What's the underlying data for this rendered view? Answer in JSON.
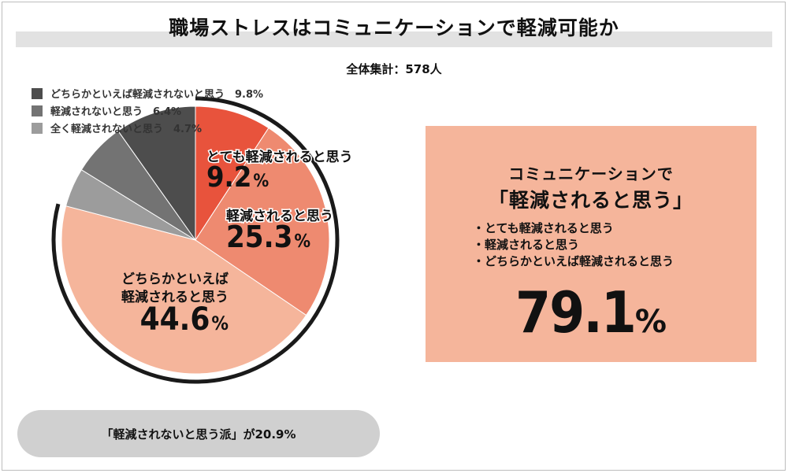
{
  "title": "職場ストレスはコミュニケーションで軽減可能か",
  "subtitle": "全体集計：578人",
  "chart_data": {
    "type": "pie",
    "start_angle_deg": 0,
    "direction": "clockwise",
    "slices": [
      {
        "id": "very",
        "lines": [
          "とても軽減されると思う"
        ],
        "value": 9.2,
        "pct_label": "9.2",
        "color": "#e8533c",
        "inside_label": true
      },
      {
        "id": "yes",
        "lines": [
          "軽減されると思う"
        ],
        "value": 25.3,
        "pct_label": "25.3",
        "color": "#ee8a70",
        "inside_label": true
      },
      {
        "id": "rather",
        "lines": [
          "どちらかといえば",
          "軽減されると思う"
        ],
        "value": 44.6,
        "pct_label": "44.6",
        "color": "#f5b59b",
        "inside_label": true
      },
      {
        "id": "not_at_all",
        "label": "全く軽減されないと思う",
        "value": 4.7,
        "color": "#9c9c9c",
        "inside_label": false
      },
      {
        "id": "no",
        "label": "軽減されないと思う",
        "value": 6.4,
        "color": "#737373",
        "inside_label": false
      },
      {
        "id": "rather_no",
        "label": "どちらかといえば軽減されないと思う",
        "value": 9.8,
        "color": "#4d4d4d",
        "inside_label": false
      }
    ],
    "percent_sign": "%"
  },
  "legend": [
    {
      "label": "どちらかといえば軽減されないと思う",
      "value_label": "9.8%",
      "color": "#4d4d4d"
    },
    {
      "label": "軽減されないと思う",
      "value_label": "6.4%",
      "color": "#737373"
    },
    {
      "label": "全く軽減されないと思う",
      "value_label": "4.7%",
      "color": "#9c9c9c"
    }
  ],
  "summary": {
    "heading1": "コミュニケーションで",
    "heading2": "「軽減されると思う」",
    "items": [
      "・とても軽減されると思う",
      "・軽減されると思う",
      "・どちらかといえば軽減されると思う"
    ],
    "total_pct": "79.1",
    "percent_sign": "%"
  },
  "footer_pill": "「軽減されないと思う派」が20.9%"
}
